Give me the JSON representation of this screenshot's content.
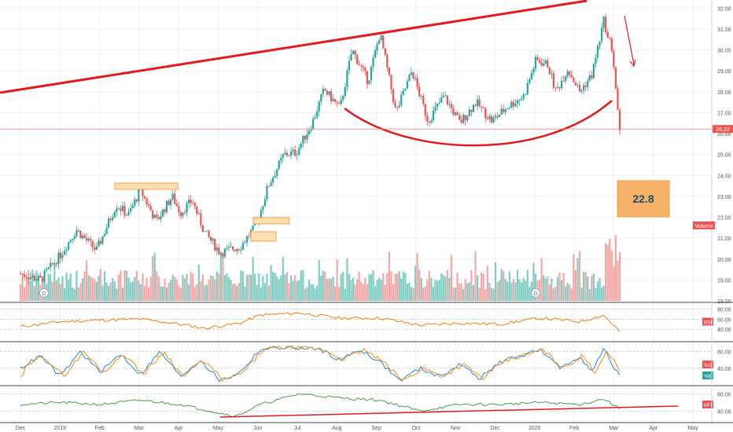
{
  "colors": {
    "up": "#26a69a",
    "down": "#ef5350",
    "vol_up": "#7fcdc4",
    "vol_down": "#f4a7a5",
    "grid": "#eef0f3",
    "axis_text": "#555555",
    "annotation": "#e31a1c",
    "rsi": "#f57c00",
    "stoch_k": "#1e88e5",
    "stoch_d": "#fb8c00",
    "mfi": "#43a047",
    "callout_fill": "#f7b26a",
    "callout_text": "#1a4f6e",
    "zone_fill": "#fde0b2",
    "zone_stroke": "#f5a040"
  },
  "chart_data": {
    "type": "candlestick",
    "title": "",
    "x_labels": [
      "Dec",
      "2019",
      "Feb",
      "Mar",
      "Apr",
      "May",
      "Jun",
      "Jul",
      "Aug",
      "Sep",
      "Oct",
      "Nov",
      "Dec",
      "2020",
      "Feb",
      "Mar",
      "Apr",
      "May"
    ],
    "price_axis": {
      "ticks": [
        "32.00",
        "31.00",
        "30.00",
        "29.00",
        "28.00",
        "27.00",
        "26.00",
        "25.00",
        "24.00",
        "23.00",
        "22.00",
        "21.00",
        "20.00",
        "19.00",
        "18.00"
      ],
      "ylim": [
        18,
        32.2
      ]
    },
    "last_price": "26.22",
    "volume_label": "Volume",
    "callout": "22.8",
    "dividend_marker": "D",
    "price_path": [
      {
        "m": 0,
        "p": 19.3
      },
      {
        "m": 0.5,
        "p": 19.0
      },
      {
        "m": 1.0,
        "p": 20.2
      },
      {
        "m": 1.4,
        "p": 21.4
      },
      {
        "m": 1.9,
        "p": 20.4
      },
      {
        "m": 2.4,
        "p": 22.6
      },
      {
        "m": 2.7,
        "p": 22.1
      },
      {
        "m": 3.0,
        "p": 23.3
      },
      {
        "m": 3.4,
        "p": 21.8
      },
      {
        "m": 3.8,
        "p": 23.0
      },
      {
        "m": 4.0,
        "p": 22.2
      },
      {
        "m": 4.3,
        "p": 22.8
      },
      {
        "m": 4.6,
        "p": 21.3
      },
      {
        "m": 5.0,
        "p": 20.3
      },
      {
        "m": 5.5,
        "p": 20.6
      },
      {
        "m": 5.9,
        "p": 21.6
      },
      {
        "m": 6.2,
        "p": 23.5
      },
      {
        "m": 6.6,
        "p": 25.0
      },
      {
        "m": 6.9,
        "p": 25.1
      },
      {
        "m": 7.3,
        "p": 26.5
      },
      {
        "m": 7.6,
        "p": 28.1
      },
      {
        "m": 8.0,
        "p": 27.2
      },
      {
        "m": 8.3,
        "p": 30.0
      },
      {
        "m": 8.7,
        "p": 28.5
      },
      {
        "m": 9.0,
        "p": 30.8
      },
      {
        "m": 9.4,
        "p": 27.0
      },
      {
        "m": 9.8,
        "p": 29.0
      },
      {
        "m": 10.2,
        "p": 26.6
      },
      {
        "m": 10.6,
        "p": 27.8
      },
      {
        "m": 11.0,
        "p": 26.5
      },
      {
        "m": 11.4,
        "p": 27.5
      },
      {
        "m": 11.8,
        "p": 26.6
      },
      {
        "m": 12.2,
        "p": 27.3
      },
      {
        "m": 12.6,
        "p": 27.8
      },
      {
        "m": 12.9,
        "p": 29.5
      },
      {
        "m": 13.2,
        "p": 29.3
      },
      {
        "m": 13.4,
        "p": 28.0
      },
      {
        "m": 13.7,
        "p": 29.1
      },
      {
        "m": 14.0,
        "p": 28.0
      },
      {
        "m": 14.3,
        "p": 28.8
      },
      {
        "m": 14.6,
        "p": 31.4
      },
      {
        "m": 14.8,
        "p": 30.0
      },
      {
        "m": 14.9,
        "p": 28.0
      },
      {
        "m": 15.0,
        "p": 26.2
      }
    ],
    "indicators": [
      {
        "name": "RSI",
        "ticks": [
          "80.00",
          "60.00",
          "40.00"
        ],
        "range": [
          20,
          90
        ],
        "path": [
          {
            "m": 0,
            "p": 45
          },
          {
            "m": 1.0,
            "p": 55
          },
          {
            "m": 2.0,
            "p": 58
          },
          {
            "m": 3.0,
            "p": 60
          },
          {
            "m": 4.0,
            "p": 50
          },
          {
            "m": 4.6,
            "p": 42
          },
          {
            "m": 5.5,
            "p": 52
          },
          {
            "m": 6.0,
            "p": 68
          },
          {
            "m": 7.0,
            "p": 72
          },
          {
            "m": 8.0,
            "p": 62
          },
          {
            "m": 9.0,
            "p": 62
          },
          {
            "m": 10.0,
            "p": 48
          },
          {
            "m": 11.0,
            "p": 52
          },
          {
            "m": 12.0,
            "p": 50
          },
          {
            "m": 13.0,
            "p": 62
          },
          {
            "m": 14.0,
            "p": 55
          },
          {
            "m": 14.6,
            "p": 68
          },
          {
            "m": 15.0,
            "p": 35
          }
        ]
      },
      {
        "name": "%D",
        "name2": "%K",
        "ticks": [
          "80.00",
          "40.00"
        ],
        "range": [
          0,
          100
        ],
        "path": [
          {
            "m": 0,
            "p": 40
          },
          {
            "m": 0.5,
            "p": 70
          },
          {
            "m": 1.0,
            "p": 20
          },
          {
            "m": 1.5,
            "p": 80
          },
          {
            "m": 2.0,
            "p": 30
          },
          {
            "m": 2.5,
            "p": 75
          },
          {
            "m": 3.0,
            "p": 25
          },
          {
            "m": 3.5,
            "p": 80
          },
          {
            "m": 4.0,
            "p": 20
          },
          {
            "m": 4.5,
            "p": 60
          },
          {
            "m": 5.0,
            "p": 10
          },
          {
            "m": 5.5,
            "p": 30
          },
          {
            "m": 6.0,
            "p": 85
          },
          {
            "m": 6.5,
            "p": 90
          },
          {
            "m": 7.0,
            "p": 88
          },
          {
            "m": 7.5,
            "p": 85
          },
          {
            "m": 8.0,
            "p": 60
          },
          {
            "m": 8.5,
            "p": 85
          },
          {
            "m": 9.0,
            "p": 55
          },
          {
            "m": 9.5,
            "p": 10
          },
          {
            "m": 10.0,
            "p": 40
          },
          {
            "m": 10.5,
            "p": 20
          },
          {
            "m": 11.0,
            "p": 50
          },
          {
            "m": 11.5,
            "p": 15
          },
          {
            "m": 12.0,
            "p": 55
          },
          {
            "m": 12.5,
            "p": 70
          },
          {
            "m": 13.0,
            "p": 85
          },
          {
            "m": 13.5,
            "p": 40
          },
          {
            "m": 14.0,
            "p": 70
          },
          {
            "m": 14.3,
            "p": 30
          },
          {
            "m": 14.6,
            "p": 85
          },
          {
            "m": 15.0,
            "p": 20
          }
        ]
      },
      {
        "name": "MFI",
        "ticks": [
          "80.00",
          "40.00"
        ],
        "range": [
          15,
          95
        ],
        "path": [
          {
            "m": 0,
            "p": 55
          },
          {
            "m": 1.0,
            "p": 60
          },
          {
            "m": 2.0,
            "p": 55
          },
          {
            "m": 3.0,
            "p": 65
          },
          {
            "m": 4.0,
            "p": 55
          },
          {
            "m": 5.0,
            "p": 35
          },
          {
            "m": 5.4,
            "p": 28
          },
          {
            "m": 6.0,
            "p": 55
          },
          {
            "m": 7.0,
            "p": 80
          },
          {
            "m": 8.0,
            "p": 70
          },
          {
            "m": 9.0,
            "p": 65
          },
          {
            "m": 10.0,
            "p": 40
          },
          {
            "m": 11.0,
            "p": 55
          },
          {
            "m": 12.0,
            "p": 55
          },
          {
            "m": 13.0,
            "p": 60
          },
          {
            "m": 14.0,
            "p": 55
          },
          {
            "m": 14.6,
            "p": 68
          },
          {
            "m": 15.0,
            "p": 45
          }
        ]
      }
    ]
  }
}
